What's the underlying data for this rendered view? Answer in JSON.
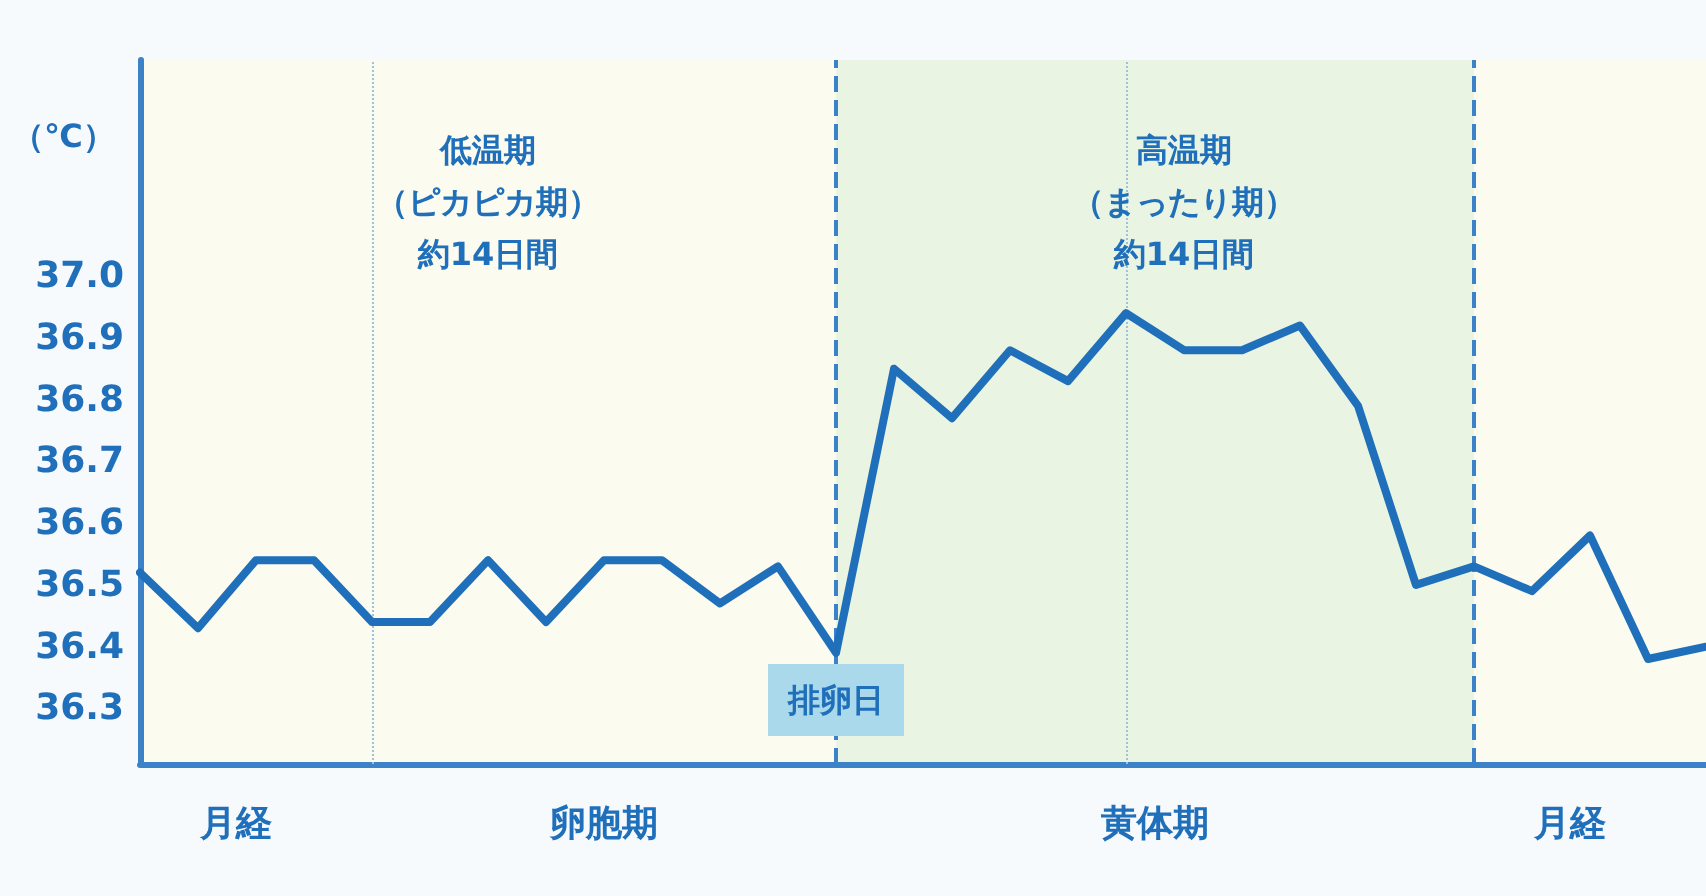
{
  "chart_data": {
    "type": "line",
    "ylabel": "（℃）",
    "categories": [
      null,
      null,
      null,
      null,
      null,
      null,
      null,
      null,
      null,
      null,
      null,
      null,
      null,
      null,
      null,
      null,
      null,
      null,
      null,
      null,
      null,
      null,
      null,
      null,
      null,
      null,
      null,
      null
    ],
    "series": [
      {
        "color": "#1f6fba",
        "values": [
          36.52,
          36.43,
          36.54,
          36.54,
          36.44,
          36.44,
          36.54,
          36.44,
          36.54,
          36.54,
          36.47,
          36.53,
          36.39,
          36.85,
          36.77,
          36.88,
          36.83,
          36.94,
          36.88,
          36.88,
          36.92,
          36.79,
          36.5,
          36.53,
          36.49,
          36.58,
          36.38,
          36.4
        ]
      }
    ],
    "ylim": [
      36.21,
      37.35
    ],
    "yticks": [
      36.3,
      36.4,
      36.5,
      36.6,
      36.7,
      36.8,
      36.9,
      {
        "value": 37,
        "label": "37.0"
      }
    ],
    "tick_labels": "y",
    "grid": "x",
    "marker": "none",
    "line_style": "solid",
    "annotations": [
      "低温期（ピカピカ期）約14日間",
      "高温期（まったり期）約14日間",
      "排卵日",
      "月経",
      "卵胞期",
      "黄体期",
      "月経"
    ]
  }
}
